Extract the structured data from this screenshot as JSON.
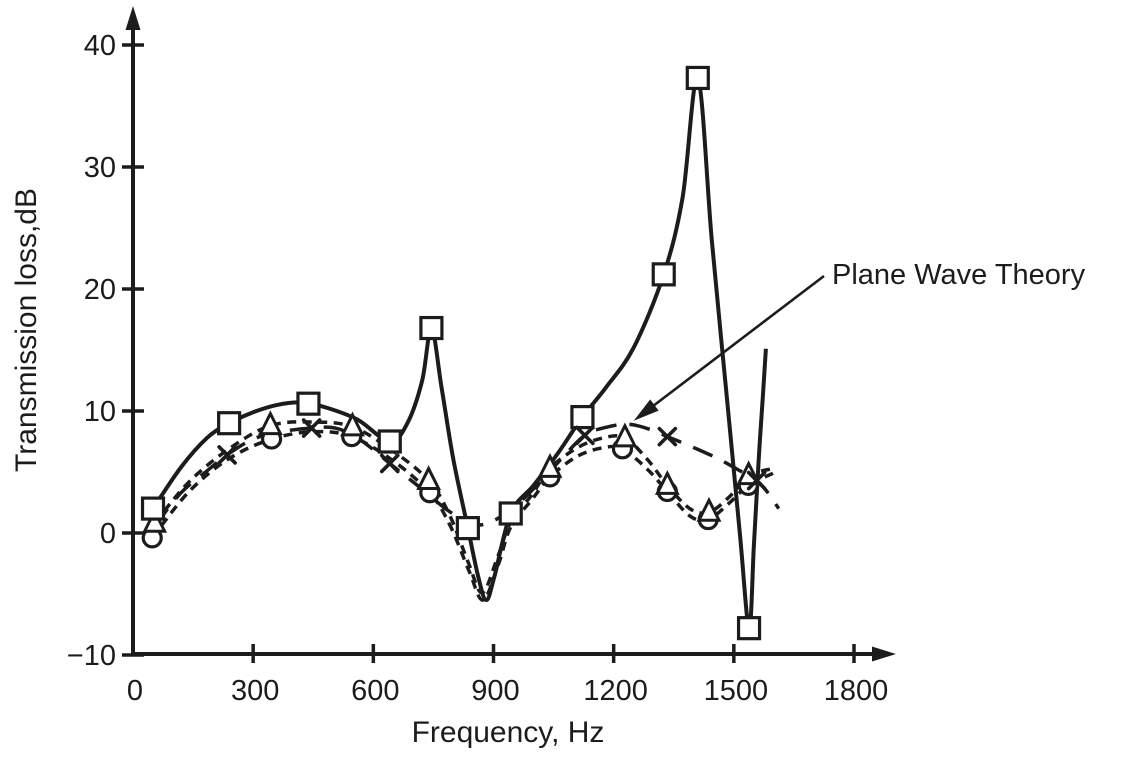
{
  "chart_data": {
    "type": "line",
    "title": "",
    "xlabel": "Frequency, Hz",
    "ylabel": "Transmission loss,dB",
    "xlim": [
      0,
      1900
    ],
    "ylim": [
      -10,
      42
    ],
    "grid": false,
    "legend_position": "none",
    "x_ticks": [
      {
        "value": 0,
        "label": "0"
      },
      {
        "value": 300,
        "label": "300"
      },
      {
        "value": 600,
        "label": "600"
      },
      {
        "value": 900,
        "label": "900"
      },
      {
        "value": 1200,
        "label": "1200"
      },
      {
        "value": 1500,
        "label": "1500"
      },
      {
        "value": 1800,
        "label": "1800"
      }
    ],
    "y_ticks": [
      {
        "value": 40,
        "label": "40"
      },
      {
        "value": 30,
        "label": "30"
      },
      {
        "value": 20,
        "label": "20"
      },
      {
        "value": 10,
        "label": "10"
      },
      {
        "value": 0,
        "label": "0"
      },
      {
        "value": -10,
        "label": "−10"
      }
    ],
    "annotation": {
      "text": "Plane Wave Theory",
      "points_to": {
        "x": 1250,
        "y": 9.2
      }
    },
    "series": [
      {
        "id": "solid-square",
        "label": "",
        "line_style": "solid",
        "marker": "square",
        "line": [
          [
            50,
            2.0
          ],
          [
            120,
            5.4
          ],
          [
            185,
            7.8
          ],
          [
            240,
            9.0
          ],
          [
            300,
            9.9
          ],
          [
            360,
            10.5
          ],
          [
            420,
            10.7
          ],
          [
            480,
            10.3
          ],
          [
            560,
            9.3
          ],
          [
            641,
            7.5
          ],
          [
            685,
            9.0
          ],
          [
            722,
            12.5
          ],
          [
            745,
            16.8
          ],
          [
            770,
            12.0
          ],
          [
            800,
            6.0
          ],
          [
            836,
            0.4
          ],
          [
            862,
            -3.6
          ],
          [
            882,
            -5.5
          ],
          [
            902,
            -3.6
          ],
          [
            943,
            1.6
          ],
          [
            1000,
            3.9
          ],
          [
            1060,
            6.5
          ],
          [
            1122,
            9.5
          ],
          [
            1180,
            11.9
          ],
          [
            1250,
            15.2
          ],
          [
            1325,
            21.2
          ],
          [
            1372,
            27.5
          ],
          [
            1410,
            37.3
          ],
          [
            1445,
            24.0
          ],
          [
            1480,
            12.0
          ],
          [
            1515,
            0.0
          ],
          [
            1538,
            -7.8
          ],
          [
            1550,
            -1.0
          ],
          [
            1562,
            6.0
          ],
          [
            1572,
            11.0
          ],
          [
            1580,
            15.1
          ]
        ],
        "markers": [
          [
            50,
            2.0
          ],
          [
            240,
            9.0
          ],
          [
            438,
            10.6
          ],
          [
            641,
            7.5
          ],
          [
            745,
            16.8
          ],
          [
            836,
            0.4
          ],
          [
            943,
            1.6
          ],
          [
            1122,
            9.5
          ],
          [
            1325,
            21.2
          ],
          [
            1410,
            37.3
          ],
          [
            1538,
            -7.8
          ]
        ]
      },
      {
        "id": "long-dash-x",
        "label": "Plane Wave Theory",
        "line_style": "long-dash",
        "marker": "x",
        "line": [
          [
            55,
            0.6
          ],
          [
            120,
            3.3
          ],
          [
            185,
            5.1
          ],
          [
            235,
            6.4
          ],
          [
            300,
            7.7
          ],
          [
            370,
            8.3
          ],
          [
            446,
            8.6
          ],
          [
            505,
            8.6
          ],
          [
            565,
            7.7
          ],
          [
            641,
            5.7
          ],
          [
            710,
            3.9
          ],
          [
            780,
            2.0
          ],
          [
            830,
            1.0
          ],
          [
            875,
            0.7
          ],
          [
            940,
            1.8
          ],
          [
            1005,
            3.8
          ],
          [
            1070,
            6.1
          ],
          [
            1128,
            8.0
          ],
          [
            1185,
            8.7
          ],
          [
            1240,
            8.9
          ],
          [
            1290,
            8.5
          ],
          [
            1334,
            7.9
          ],
          [
            1400,
            7.0
          ],
          [
            1460,
            6.1
          ],
          [
            1510,
            5.2
          ],
          [
            1557,
            4.3
          ],
          [
            1585,
            3.3
          ],
          [
            1612,
            2.0
          ]
        ],
        "markers": [
          [
            235,
            6.4
          ],
          [
            446,
            8.6
          ],
          [
            641,
            5.7
          ],
          [
            1128,
            8.0
          ],
          [
            1334,
            7.9
          ],
          [
            1557,
            4.3
          ]
        ]
      },
      {
        "id": "short-dash-triangle",
        "label": "",
        "line_style": "short-dash",
        "marker": "triangle",
        "line": [
          [
            54,
            0.8
          ],
          [
            140,
            4.2
          ],
          [
            240,
            6.9
          ],
          [
            343,
            8.8
          ],
          [
            450,
            9.1
          ],
          [
            548,
            8.7
          ],
          [
            650,
            6.7
          ],
          [
            738,
            4.3
          ],
          [
            790,
            1.5
          ],
          [
            838,
            -2.5
          ],
          [
            872,
            -4.9
          ],
          [
            910,
            -2.0
          ],
          [
            943,
            0.9
          ],
          [
            995,
            3.1
          ],
          [
            1041,
            5.3
          ],
          [
            1110,
            7.0
          ],
          [
            1175,
            7.8
          ],
          [
            1228,
            7.8
          ],
          [
            1285,
            6.0
          ],
          [
            1334,
            3.9
          ],
          [
            1390,
            2.0
          ],
          [
            1438,
            1.7
          ],
          [
            1490,
            3.0
          ],
          [
            1537,
            4.7
          ],
          [
            1600,
            5.3
          ]
        ],
        "markers": [
          [
            54,
            0.8
          ],
          [
            343,
            8.8
          ],
          [
            548,
            8.7
          ],
          [
            738,
            4.3
          ],
          [
            1041,
            5.3
          ],
          [
            1228,
            7.8
          ],
          [
            1334,
            3.9
          ],
          [
            1438,
            1.7
          ],
          [
            1537,
            4.7
          ]
        ]
      },
      {
        "id": "short-dash-circle",
        "label": "",
        "line_style": "short-dash",
        "marker": "circle",
        "line": [
          [
            48,
            -0.4
          ],
          [
            140,
            3.4
          ],
          [
            240,
            6.1
          ],
          [
            346,
            7.7
          ],
          [
            450,
            8.3
          ],
          [
            546,
            7.9
          ],
          [
            650,
            5.9
          ],
          [
            741,
            3.3
          ],
          [
            792,
            0.6
          ],
          [
            840,
            -3.2
          ],
          [
            874,
            -5.5
          ],
          [
            912,
            -2.6
          ],
          [
            943,
            0.5
          ],
          [
            995,
            2.7
          ],
          [
            1041,
            4.6
          ],
          [
            1110,
            6.3
          ],
          [
            1175,
            7.0
          ],
          [
            1222,
            6.9
          ],
          [
            1285,
            5.2
          ],
          [
            1334,
            3.4
          ],
          [
            1390,
            1.4
          ],
          [
            1436,
            1.1
          ],
          [
            1490,
            2.5
          ],
          [
            1536,
            3.9
          ],
          [
            1598,
            4.9
          ]
        ],
        "markers": [
          [
            48,
            -0.4
          ],
          [
            346,
            7.7
          ],
          [
            546,
            7.9
          ],
          [
            741,
            3.3
          ],
          [
            1041,
            4.6
          ],
          [
            1222,
            6.9
          ],
          [
            1334,
            3.4
          ],
          [
            1436,
            1.1
          ],
          [
            1536,
            3.9
          ]
        ]
      }
    ],
    "ink_color": "#1c1c1c",
    "background_color": "#ffffff"
  }
}
